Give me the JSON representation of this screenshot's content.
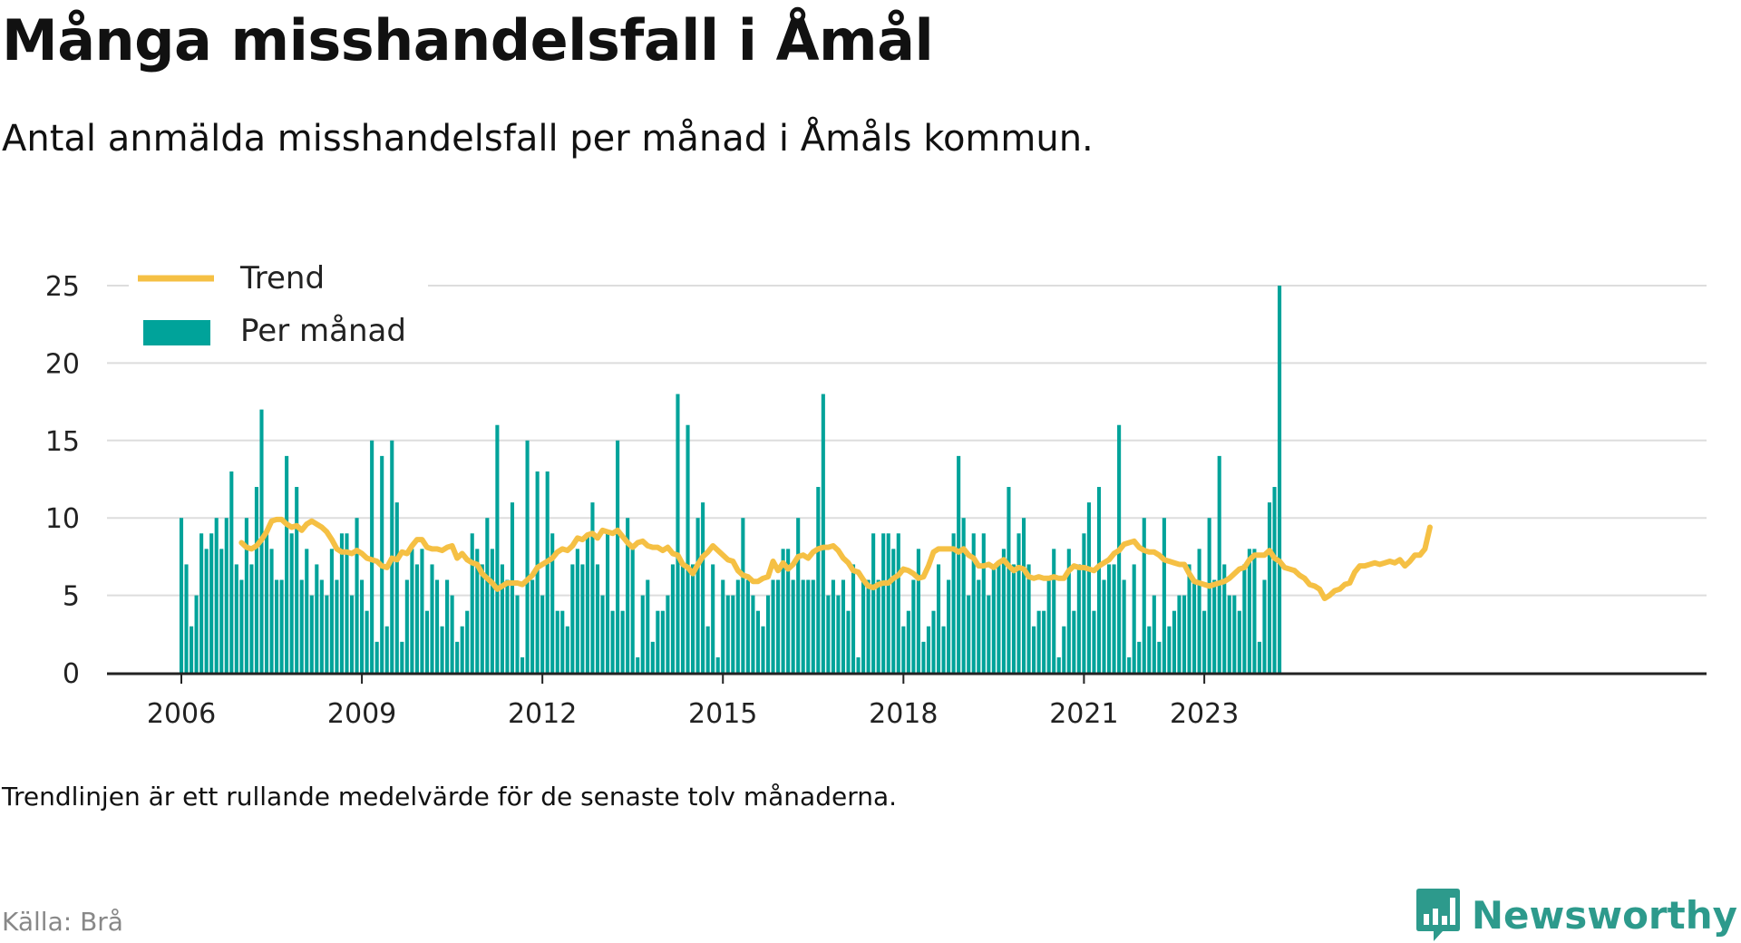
{
  "title": "Många misshandelsfall i Åmål",
  "subtitle": "Antal anmälda misshandelsfall per månad i Åmåls kommun.",
  "note": "Trendlinjen är ett rullande medelvärde för de senaste tolv månaderna.",
  "source": "Källa: Brå",
  "logo": {
    "text": "Newsworthy",
    "icon": "newsworthy-bar-chart-icon"
  },
  "colors": {
    "bars": "#00a39a",
    "trend": "#f5c044",
    "grid": "#dddddd",
    "axis": "#222222"
  },
  "chart_data": {
    "type": "bar",
    "start": "2006-01",
    "x_ticks": [
      "2006",
      "2009",
      "2012",
      "2015",
      "2018",
      "2021",
      "2023"
    ],
    "x_tick_years": [
      2006,
      2009,
      2012,
      2015,
      2018,
      2021,
      2023
    ],
    "y_ticks": [
      0,
      5,
      10,
      15,
      20,
      25
    ],
    "ylim": [
      0,
      25
    ],
    "grid": true,
    "legend_position": "top-left",
    "series": [
      {
        "name": "Per månad",
        "type": "bar",
        "values": [
          10,
          7,
          3,
          5,
          9,
          8,
          9,
          10,
          8,
          10,
          13,
          7,
          6,
          10,
          7,
          12,
          17,
          9,
          8,
          6,
          6,
          14,
          9,
          12,
          6,
          8,
          5,
          7,
          6,
          5,
          8,
          6,
          9,
          9,
          5,
          10,
          6,
          4,
          15,
          2,
          14,
          3,
          15,
          11,
          2,
          6,
          8,
          7,
          8,
          4,
          7,
          6,
          3,
          6,
          5,
          2,
          3,
          4,
          9,
          8,
          7,
          10,
          8,
          16,
          7,
          6,
          11,
          5,
          1,
          15,
          6,
          13,
          5,
          13,
          9,
          4,
          4,
          3,
          7,
          8,
          7,
          9,
          11,
          7,
          5,
          9,
          4,
          15,
          4,
          10,
          8,
          1,
          5,
          6,
          2,
          4,
          4,
          5,
          7,
          18,
          7,
          16,
          7,
          10,
          11,
          3,
          7,
          1,
          6,
          5,
          5,
          6,
          10,
          6,
          5,
          4,
          3,
          5,
          6,
          6,
          8,
          8,
          6,
          10,
          6,
          6,
          6,
          12,
          18,
          5,
          6,
          5,
          6,
          4,
          7,
          1,
          6,
          6,
          9,
          6,
          9,
          9,
          8,
          9,
          3,
          4,
          6,
          8,
          2,
          3,
          4,
          7,
          3,
          6,
          9,
          14,
          10,
          5,
          9,
          6,
          9,
          5,
          7,
          7,
          8,
          12,
          7,
          9,
          10,
          7,
          3,
          4,
          4,
          6,
          8,
          1,
          3,
          8,
          4,
          7,
          9,
          11,
          4,
          12,
          6,
          7,
          7,
          16,
          6,
          1,
          7,
          2,
          10,
          3,
          5,
          2,
          10,
          3,
          4,
          5,
          5,
          7,
          6,
          8,
          4,
          10,
          6,
          14,
          7,
          5,
          5,
          4,
          7,
          8,
          8,
          2,
          6,
          11,
          12,
          25
        ]
      },
      {
        "name": "Trend",
        "type": "line",
        "start_index": 12,
        "values": [
          8.4,
          8.1,
          8.0,
          8.2,
          8.6,
          9.1,
          9.8,
          9.9,
          9.9,
          9.6,
          9.4,
          9.5,
          9.2,
          9.6,
          9.8,
          9.6,
          9.4,
          9.1,
          8.6,
          8.0,
          7.8,
          7.8,
          7.7,
          7.9,
          7.7,
          7.4,
          7.3,
          7.2,
          6.9,
          6.8,
          7.4,
          7.3,
          7.8,
          7.7,
          8.2,
          8.6,
          8.6,
          8.1,
          8.0,
          8.0,
          7.9,
          8.1,
          8.2,
          7.4,
          7.7,
          7.3,
          7.1,
          7.0,
          6.4,
          6.1,
          5.8,
          5.4,
          5.6,
          5.8,
          5.8,
          5.8,
          5.7,
          6.0,
          6.3,
          6.8,
          7.0,
          7.2,
          7.4,
          7.8,
          8.0,
          7.9,
          8.2,
          8.7,
          8.6,
          8.9,
          9.0,
          8.7,
          9.2,
          9.1,
          9.0,
          9.2,
          8.8,
          8.4,
          8.1,
          8.4,
          8.5,
          8.2,
          8.1,
          8.1,
          7.9,
          8.1,
          7.7,
          7.6,
          7.0,
          6.8,
          6.4,
          7.0,
          7.5,
          7.8,
          8.2,
          7.9,
          7.6,
          7.3,
          7.2,
          6.6,
          6.3,
          6.2,
          5.9,
          5.9,
          6.1,
          6.2,
          7.2,
          6.6,
          7.1,
          6.7,
          7.0,
          7.5,
          7.6,
          7.4,
          7.8,
          8.0,
          8.1,
          8.1,
          8.2,
          7.9,
          7.4,
          7.1,
          6.6,
          6.5,
          6.0,
          5.6,
          5.5,
          5.7,
          5.8,
          5.8,
          6.1,
          6.3,
          6.7,
          6.6,
          6.4,
          6.1,
          6.2,
          6.9,
          7.8,
          8.0,
          8.0,
          8.0,
          8.0,
          7.8,
          8.0,
          7.6,
          7.4,
          6.9,
          6.9,
          7.0,
          6.8,
          7.1,
          7.3,
          6.9,
          6.6,
          6.8,
          6.7,
          6.2,
          6.1,
          6.2,
          6.1,
          6.1,
          6.2,
          6.1,
          6.1,
          6.6,
          6.9,
          6.8,
          6.8,
          6.7,
          6.6,
          6.9,
          7.1,
          7.3,
          7.7,
          7.9,
          8.3,
          8.4,
          8.5,
          8.1,
          7.9,
          7.8,
          7.8,
          7.6,
          7.3,
          7.2,
          7.1,
          7.0,
          7.0,
          6.4,
          5.9,
          5.8,
          5.7,
          5.6,
          5.7,
          5.8,
          5.9,
          6.1,
          6.4,
          6.7,
          6.8,
          7.3,
          7.6,
          7.6,
          7.6,
          7.9,
          7.4,
          7.2,
          6.8,
          6.7,
          6.6,
          6.3,
          6.1,
          5.7,
          5.6,
          5.4,
          4.8,
          5.0,
          5.3,
          5.4,
          5.7,
          5.8,
          6.5,
          6.9,
          6.9,
          7.0,
          7.1,
          7.0,
          7.1,
          7.2,
          7.1,
          7.3,
          6.9,
          7.2,
          7.6,
          7.6,
          8.0,
          9.4
        ]
      }
    ]
  }
}
